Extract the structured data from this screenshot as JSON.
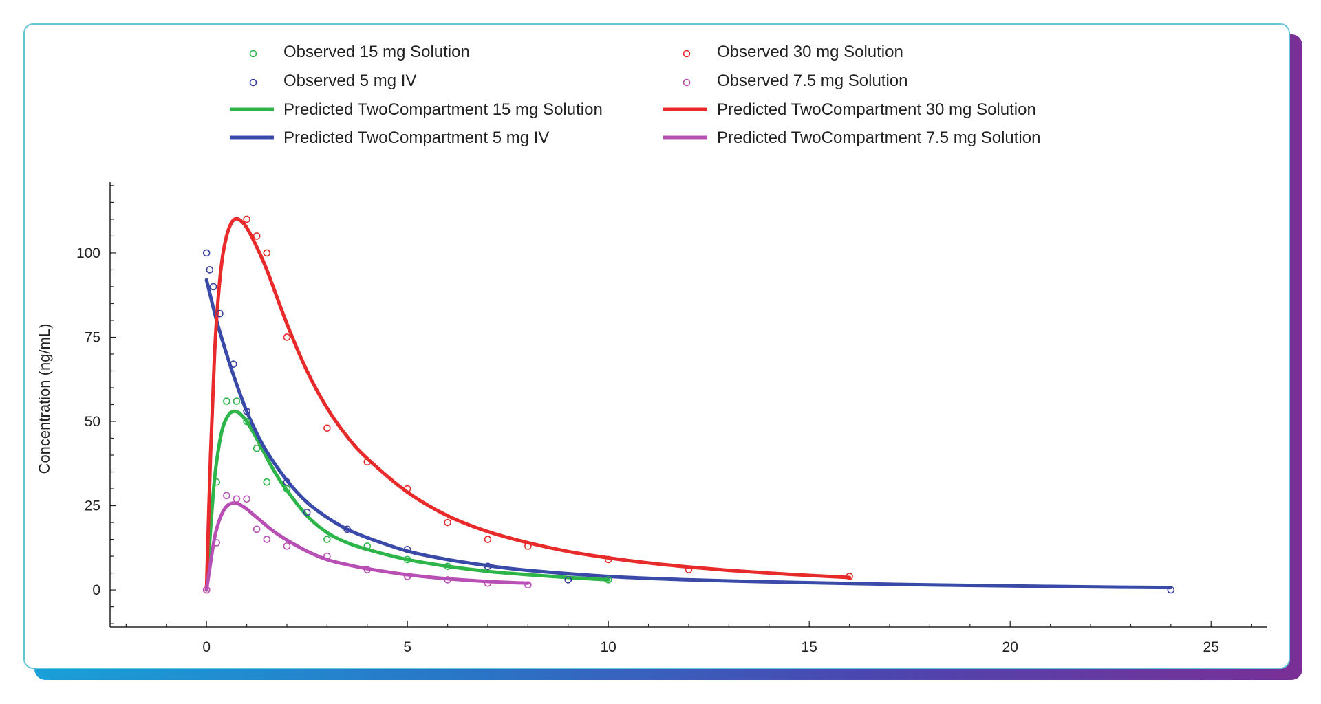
{
  "chart_data": {
    "type": "scatter",
    "title": "",
    "xlabel": "",
    "ylabel": "Concentration (ng/mL)",
    "xlim": [
      -2.4,
      26.4
    ],
    "ylim": [
      -11,
      121
    ],
    "x_ticks": [
      0,
      5,
      10,
      15,
      20,
      25
    ],
    "y_ticks": [
      0,
      25,
      50,
      75,
      100
    ],
    "grid": false,
    "legend_position": "top",
    "observed": [
      {
        "name": "Observed 15 mg Solution",
        "color": "#2db54a",
        "points": [
          [
            0,
            0
          ],
          [
            0.25,
            32
          ],
          [
            0.5,
            56
          ],
          [
            0.75,
            56
          ],
          [
            1,
            50
          ],
          [
            1.25,
            42
          ],
          [
            1.5,
            32
          ],
          [
            2,
            30
          ],
          [
            3,
            15
          ],
          [
            4,
            13
          ],
          [
            5,
            9
          ],
          [
            6,
            7
          ],
          [
            10,
            3
          ]
        ]
      },
      {
        "name": "Observed 5 mg IV",
        "color": "#3a3fa0",
        "points": [
          [
            0,
            100
          ],
          [
            0.08,
            95
          ],
          [
            0.17,
            90
          ],
          [
            0.33,
            82
          ],
          [
            0.67,
            67
          ],
          [
            1,
            53
          ],
          [
            2,
            32
          ],
          [
            2.5,
            23
          ],
          [
            3.5,
            18
          ],
          [
            5,
            12
          ],
          [
            7,
            7
          ],
          [
            9,
            3
          ],
          [
            24,
            0
          ]
        ]
      },
      {
        "name": "Observed 30 mg Solution",
        "color": "#e82a2a",
        "points": [
          [
            0,
            0
          ],
          [
            1,
            110
          ],
          [
            1.25,
            105
          ],
          [
            1.5,
            100
          ],
          [
            2,
            75
          ],
          [
            3,
            48
          ],
          [
            4,
            38
          ],
          [
            5,
            30
          ],
          [
            6,
            20
          ],
          [
            7,
            15
          ],
          [
            8,
            13
          ],
          [
            10,
            9
          ],
          [
            12,
            6
          ],
          [
            16,
            4
          ]
        ]
      },
      {
        "name": "Observed 7.5 mg Solution",
        "color": "#b84fb5",
        "points": [
          [
            0,
            0
          ],
          [
            0.25,
            14
          ],
          [
            0.5,
            28
          ],
          [
            0.75,
            27
          ],
          [
            1,
            27
          ],
          [
            1.25,
            18
          ],
          [
            1.5,
            15
          ],
          [
            2,
            13
          ],
          [
            3,
            10
          ],
          [
            4,
            6
          ],
          [
            5,
            4
          ],
          [
            6,
            3
          ],
          [
            7,
            2
          ],
          [
            8,
            1.5
          ]
        ]
      }
    ],
    "predicted": [
      {
        "name": "Predicted TwoCompartment 15 mg Solution",
        "color": "#2db54a",
        "x": [
          0,
          0.1,
          0.2,
          0.3,
          0.4,
          0.5,
          0.6,
          0.7,
          0.8,
          0.9,
          1,
          1.2,
          1.4,
          1.6,
          1.8,
          2,
          2.5,
          3,
          3.5,
          4,
          5,
          6,
          7,
          8,
          9,
          10
        ],
        "y": [
          0,
          18,
          33,
          42,
          48,
          51,
          52.6,
          53,
          52.6,
          51.5,
          50,
          46,
          41.5,
          37,
          33,
          29.5,
          22,
          17,
          14,
          12,
          9,
          7,
          5.5,
          4.5,
          3.7,
          3
        ]
      },
      {
        "name": "Predicted TwoCompartment 5 mg IV",
        "color": "#3a4aa8",
        "x": [
          0,
          0.25,
          0.5,
          0.75,
          1,
          1.25,
          1.5,
          2,
          2.5,
          3,
          3.5,
          4,
          5,
          6,
          7,
          8,
          10,
          12,
          14,
          16,
          18,
          20,
          22,
          24
        ],
        "y": [
          92,
          80,
          70,
          61,
          53,
          46.5,
          41,
          32.5,
          26,
          21.5,
          18,
          15.5,
          11.5,
          9,
          7.2,
          5.8,
          4,
          3,
          2.4,
          1.9,
          1.5,
          1.2,
          0.9,
          0.7
        ]
      },
      {
        "name": "Predicted TwoCompartment 30 mg Solution",
        "color": "#e82a2a",
        "x": [
          0,
          0.1,
          0.2,
          0.3,
          0.4,
          0.5,
          0.6,
          0.7,
          0.8,
          0.9,
          1,
          1.2,
          1.5,
          2,
          2.5,
          3,
          3.5,
          4,
          5,
          6,
          7,
          8,
          9,
          10,
          11,
          12,
          13,
          14,
          15,
          16
        ],
        "y": [
          0,
          40,
          70,
          88,
          99,
          105,
          108.5,
          110,
          110,
          109,
          107.5,
          103,
          95,
          79,
          65,
          54,
          45.5,
          39,
          29,
          22,
          17.3,
          14,
          11.4,
          9.5,
          8,
          6.8,
          5.8,
          5,
          4.3,
          3.7
        ]
      },
      {
        "name": "Predicted TwoCompartment 7.5 mg Solution",
        "color": "#b84fb5",
        "x": [
          0,
          0.1,
          0.2,
          0.3,
          0.4,
          0.5,
          0.6,
          0.7,
          0.8,
          0.9,
          1,
          1.2,
          1.4,
          1.6,
          1.8,
          2,
          2.5,
          3,
          3.5,
          4,
          5,
          6,
          7,
          8
        ],
        "y": [
          0,
          8,
          15.5,
          20,
          23,
          24.8,
          25.6,
          25.8,
          25.5,
          24.8,
          24,
          22,
          20,
          18,
          16.3,
          14.8,
          11.5,
          9,
          7.5,
          6.3,
          4.5,
          3.3,
          2.5,
          2
        ]
      }
    ],
    "legend": {
      "columns": [
        [
          {
            "type": "marker",
            "label": "Observed 15 mg Solution",
            "color": "#2db54a"
          },
          {
            "type": "marker",
            "label": "Observed 5 mg IV",
            "color": "#3a3fa0"
          },
          {
            "type": "line",
            "label": "Predicted TwoCompartment 15 mg Solution",
            "color": "#2db54a"
          },
          {
            "type": "line",
            "label": "Predicted TwoCompartment 5 mg IV",
            "color": "#3a4aa8"
          }
        ],
        [
          {
            "type": "marker",
            "label": "Observed 30 mg Solution",
            "color": "#e82a2a"
          },
          {
            "type": "marker",
            "label": "Observed 7.5 mg Solution",
            "color": "#b84fb5"
          },
          {
            "type": "line",
            "label": "Predicted TwoCompartment 30 mg Solution",
            "color": "#e82a2a"
          },
          {
            "type": "line",
            "label": "Predicted TwoCompartment 7.5 mg Solution",
            "color": "#b84fb5"
          }
        ]
      ]
    }
  }
}
